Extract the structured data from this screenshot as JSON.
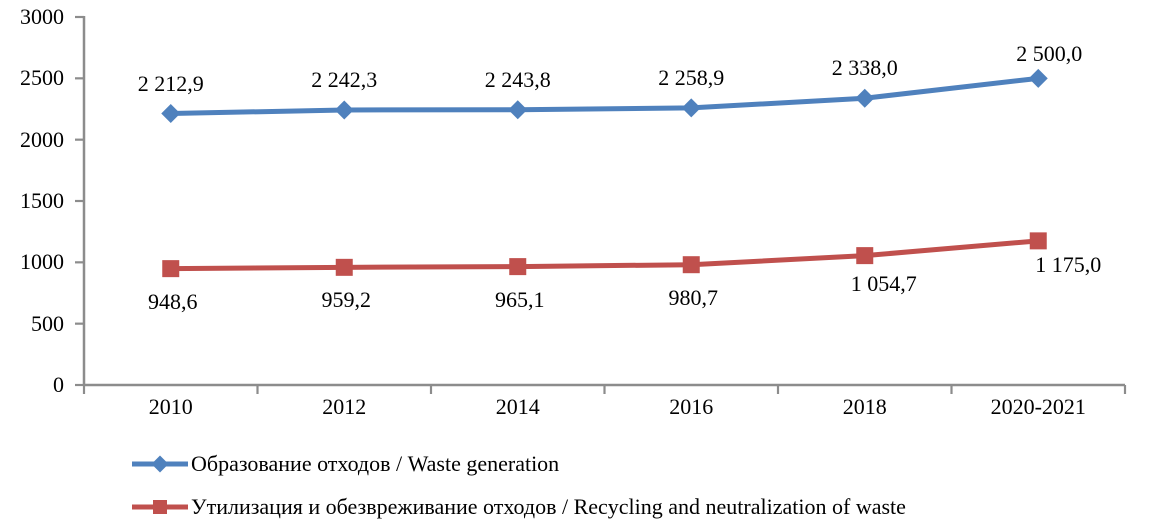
{
  "chart_data": {
    "type": "line",
    "title": "",
    "categories": [
      "2010",
      "2012",
      "2014",
      "2016",
      "2018",
      "2020-2021"
    ],
    "series": [
      {
        "name": "Образование отходов / Waste generation",
        "color": "#4F81BD",
        "marker": "diamond",
        "values": [
          2212.9,
          2242.3,
          2243.8,
          2258.9,
          2338.0,
          2500.0
        ],
        "point_labels": [
          "2 212,9",
          "2 242,3",
          "2 243,8",
          "2 258,9",
          "2 338,0",
          "2 500,0"
        ],
        "label_position": "above",
        "label_offsets": [
          [
            0,
            -30
          ],
          [
            0,
            -30
          ],
          [
            0,
            -30
          ],
          [
            0,
            -30
          ],
          [
            0,
            -30
          ],
          [
            11,
            -24
          ]
        ]
      },
      {
        "name": "Утилизация и обезвреживание отходов / Recycling and neutralization of waste",
        "color": "#C0504D",
        "marker": "square",
        "values": [
          948.6,
          959.2,
          965.1,
          980.7,
          1054.7,
          1175.0
        ],
        "point_labels": [
          "948,6",
          "959,2",
          "965,1",
          "980,7",
          "1 054,7",
          "1 175,0"
        ],
        "label_position": "below",
        "label_offsets": [
          [
            2,
            33
          ],
          [
            2,
            33
          ],
          [
            2,
            33
          ],
          [
            2,
            33
          ],
          [
            19,
            28
          ],
          [
            30,
            24
          ]
        ]
      }
    ],
    "xlabel": "",
    "ylabel": "",
    "ylim": [
      0,
      3000
    ],
    "ytick_step": 500,
    "ytick_labels": [
      "0",
      "500",
      "1000",
      "1500",
      "2000",
      "2500",
      "3000"
    ],
    "grid": false,
    "legend_position": "bottom-left",
    "axis_color": "#8C8C8C",
    "text_color": "#000000"
  }
}
